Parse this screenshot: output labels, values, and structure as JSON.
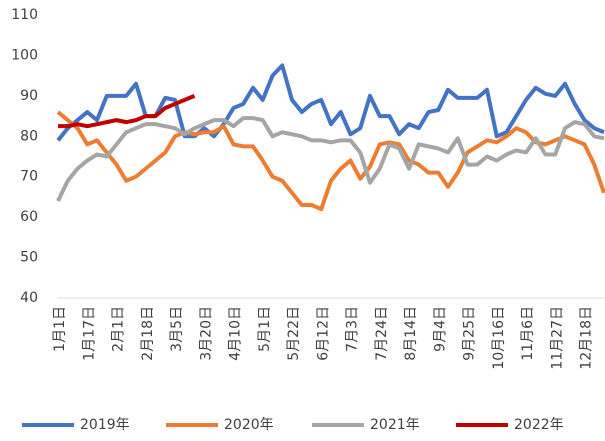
{
  "chart_data": {
    "type": "line",
    "categories": [
      "1月1日",
      null,
      null,
      "1月17日",
      null,
      null,
      "2月1日",
      null,
      null,
      "2月18日",
      null,
      null,
      "3月5日",
      null,
      null,
      "3月20日",
      null,
      null,
      "4月10日",
      null,
      null,
      "5月1日",
      null,
      null,
      "5月22日",
      null,
      null,
      "6月12日",
      null,
      null,
      "7月3日",
      null,
      null,
      "7月24日",
      null,
      null,
      "8月14日",
      null,
      null,
      "9月4日",
      null,
      null,
      "9月25日",
      null,
      null,
      "10月16日",
      null,
      null,
      "11月6日",
      null,
      null,
      "11月27日",
      null,
      null,
      "12月18日",
      null,
      null
    ],
    "series": [
      {
        "name": "2019年",
        "color": "#4472c4",
        "values": [
          79,
          82,
          84,
          86,
          84,
          90,
          90,
          90,
          93,
          85,
          85,
          89.5,
          89,
          80,
          80,
          82,
          80,
          83,
          87,
          88,
          92,
          89,
          95,
          97.5,
          89,
          86,
          88,
          89,
          83,
          86,
          80.5,
          82,
          90,
          85,
          85,
          80.5,
          83,
          82,
          86,
          86.5,
          91.5,
          89.5,
          89.5,
          89.5,
          91.5,
          80,
          81,
          85,
          89,
          92,
          90.5,
          90,
          93,
          88,
          84,
          82,
          81
        ]
      },
      {
        "name": "2020年",
        "color": "#ed7d31",
        "values": [
          86,
          84,
          82,
          78,
          79,
          76,
          73,
          69,
          70,
          72,
          74,
          76,
          80,
          81,
          80.5,
          81,
          81,
          82.5,
          78,
          77.5,
          77.5,
          74,
          70,
          69,
          66,
          63,
          63,
          62,
          69,
          72,
          74,
          69.5,
          72.5,
          78,
          78.5,
          78,
          74,
          73,
          71,
          71,
          67.5,
          71,
          76,
          77.5,
          79,
          78.5,
          80,
          82,
          81,
          78.5,
          78,
          79,
          80,
          79,
          78,
          73,
          66
        ]
      },
      {
        "name": "2021年",
        "color": "#a5a5a5",
        "values": [
          64,
          69,
          72,
          74,
          75.5,
          75,
          78,
          81,
          82,
          83,
          83,
          82.5,
          82,
          80.5,
          82,
          83,
          84,
          84,
          82.5,
          84.5,
          84.5,
          84,
          80,
          81,
          80.5,
          80,
          79,
          79,
          78.5,
          79,
          79,
          76,
          68.5,
          72,
          78,
          77,
          72,
          78,
          77.5,
          77,
          76,
          79.5,
          73,
          73,
          75,
          74,
          75.5,
          76.5,
          76,
          79.5,
          75.5,
          75.5,
          82,
          83.5,
          83,
          80,
          79.5
        ]
      },
      {
        "name": "2022年",
        "color": "#c00000",
        "values": [
          82.5,
          82.5,
          83,
          82.5,
          83,
          83.5,
          84,
          83.5,
          84,
          85,
          85,
          87,
          88,
          89,
          90,
          null,
          null,
          null,
          null,
          null,
          null,
          null,
          null,
          null,
          null,
          null,
          null,
          null,
          null,
          null,
          null,
          null,
          null,
          null,
          null,
          null,
          null,
          null,
          null,
          null,
          null,
          null,
          null,
          null,
          null,
          null,
          null,
          null,
          null,
          null,
          null,
          null,
          null,
          null,
          null,
          null,
          null
        ]
      }
    ],
    "ylim": [
      40,
      110
    ],
    "yticks": [
      40,
      50,
      60,
      70,
      80,
      90,
      100,
      110
    ],
    "grid": false
  }
}
